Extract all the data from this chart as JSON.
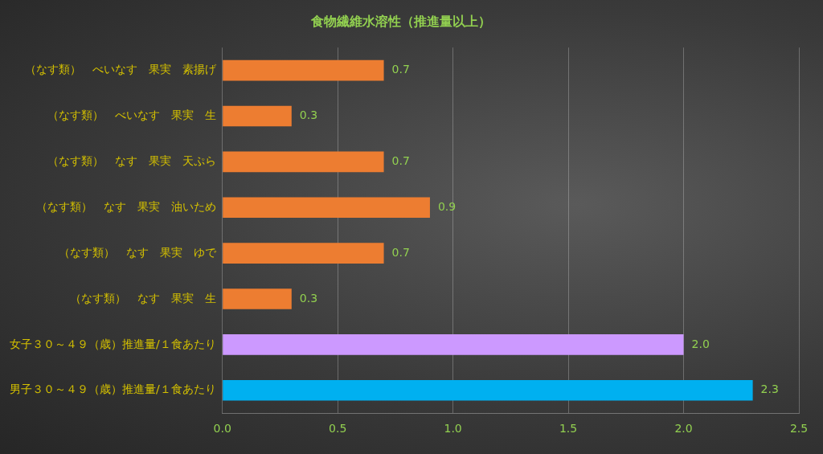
{
  "chart_data": {
    "type": "bar",
    "orientation": "horizontal",
    "title": "食物繊維水溶性（推進量以上）",
    "categories": [
      "（なす類）　べいなす　果実　素揚げ",
      "（なす類）　べいなす　果実　生",
      "（なす類）　なす　果実　天ぷら",
      "（なす類）　なす　果実　油いため",
      "（なす類）　なす　果実　ゆで",
      "（なす類）　なす　果実　生",
      "女子３０～４９（歳）推進量/１食あたり",
      "男子３０～４９（歳）推進量/１食あたり"
    ],
    "values": [
      0.7,
      0.3,
      0.7,
      0.9,
      0.7,
      0.3,
      2.0,
      2.3
    ],
    "colors": [
      "#ed7d31",
      "#ed7d31",
      "#ed7d31",
      "#ed7d31",
      "#ed7d31",
      "#ed7d31",
      "#cc99ff",
      "#00b0f0"
    ],
    "xlim": [
      0,
      2.5
    ],
    "xticks": [
      {
        "value": 0,
        "label": "0.0"
      },
      {
        "value": 0.5,
        "label": "0.5"
      },
      {
        "value": 1,
        "label": "1.0"
      },
      {
        "value": 1.5,
        "label": "1.5"
      },
      {
        "value": 2,
        "label": "2.0"
      },
      {
        "value": 2.5,
        "label": "2.5"
      }
    ],
    "value_labels": [
      "0.7",
      "0.3",
      "0.7",
      "0.9",
      "0.7",
      "0.3",
      "2.0",
      "2.3"
    ],
    "grid": "x",
    "legend": false
  }
}
